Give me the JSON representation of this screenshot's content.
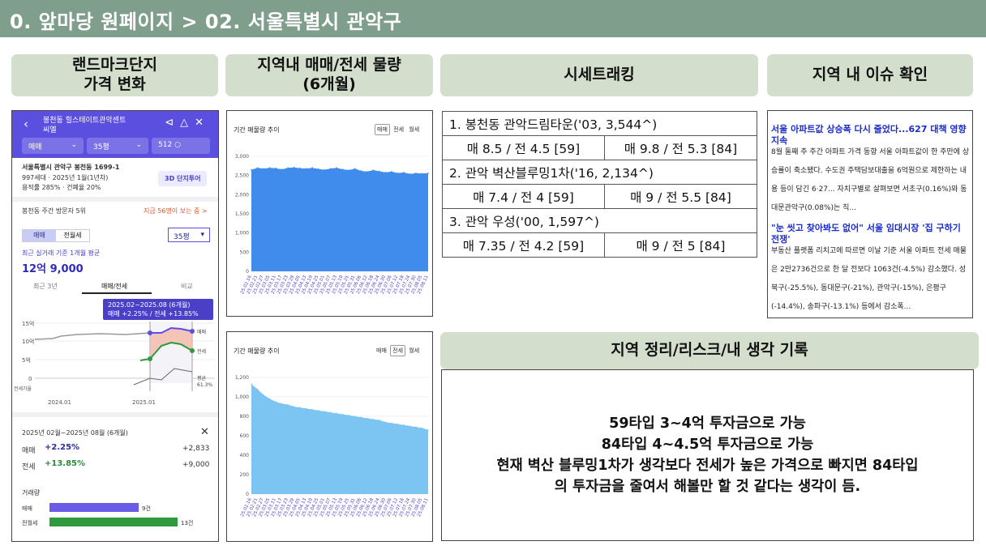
{
  "page": {
    "title": "0. 앞마당 원페이지 > 02. 서울특별시 관악구"
  },
  "headers": {
    "landmark": "랜드마크단지\n가격 변화",
    "volume": "지역내 매매/전세 물량\n(6개월)",
    "tracking": "시세트래킹",
    "issues": "지역 내 이슈 확인",
    "memo": "지역 정리/리스크/내 생각 기록"
  },
  "phone": {
    "title_line1": "봉천동 힐스테이트관악센트",
    "title_line2": "씨엘",
    "deal_type": "매매",
    "size": "35평",
    "count": "512",
    "address": "서울특별시 관악구 봉천동 1699-1",
    "households": "997세대 · 2025년 1월(1년차)",
    "ratio": "용적률 285% · 건폐율 20%",
    "tour_button": "3D 단지투어",
    "visitor_rank": "봉천동 주간 방문자 5위",
    "viewers": "지금 56명이 보는 중 >",
    "seg_sale": "매매",
    "seg_rent": "전월세",
    "size_dropdown": "35평",
    "avg_label": "최근 실거래 기준 1개월 평균",
    "avg_price": "12억 9,000",
    "tab_3y": "최근 3년",
    "tab_sale_rent": "매매/전세",
    "tab_compare": "비교",
    "tooltip_line1": "2025.02~2025.08 (6개월)",
    "tooltip_line2": "매매 +2.25% / 전세 +13.85%",
    "y_15": "15억",
    "y_10": "10억",
    "y_5": "5억",
    "y_0": "0",
    "y_vol": "전세가율",
    "lbl_sale": "매매",
    "lbl_rent": "전세",
    "lbl_avg": "평균",
    "lbl_avg_val": "61.3%",
    "x_2024": "2024.01",
    "x_2025": "2025.01",
    "period": "2025년 02월~2025년 08월 (6개월)",
    "close": "✕",
    "sale_label": "매매",
    "sale_pct": "+2.25%",
    "sale_amt": "+2,833",
    "rent_label": "전세",
    "rent_pct": "+13.85%",
    "rent_amt": "+9,000",
    "trade_title": "거래량",
    "trade_sale": "매매",
    "trade_sale_n": "9건",
    "trade_rent": "전월세",
    "trade_rent_n": "13건",
    "colors": {
      "brand": "#5b4fe0",
      "sale": "#5b4fe0",
      "rent": "#2e9a3c"
    }
  },
  "chart_data": [
    {
      "type": "area",
      "title": "기간 매물량 추이",
      "legend": [
        "매매",
        "전세",
        "월세"
      ],
      "selected": "매매",
      "ylim": [
        0,
        3000
      ],
      "yticks": [
        "0",
        "500",
        "1,000",
        "1,500",
        "2,000",
        "2,500",
        "3,000"
      ],
      "x": [
        "25.02.16",
        "25.02.21",
        "25.02.27",
        "25.03.05",
        "25.03.11",
        "25.03.17",
        "25.03.23",
        "25.03.29",
        "25.04.05",
        "25.04.13",
        "25.04.19",
        "25.04.25",
        "25.05.01",
        "25.05.07",
        "25.05.13",
        "25.05.19",
        "25.05.25",
        "25.05.31",
        "25.06.06",
        "25.06.12",
        "25.06.18",
        "25.06.24",
        "25.06.30",
        "25.07.06",
        "25.07.12",
        "25.07.18",
        "25.07.24",
        "25.07.30",
        "25.08.05",
        "25.08.11"
      ],
      "series": [
        {
          "name": "매매",
          "values": [
            2650,
            2700,
            2680,
            2700,
            2690,
            2660,
            2700,
            2710,
            2690,
            2680,
            2700,
            2670,
            2650,
            2680,
            2700,
            2660,
            2640,
            2680,
            2620,
            2600,
            2640,
            2610,
            2580,
            2600,
            2560,
            2580,
            2540,
            2560,
            2550,
            2560
          ]
        }
      ]
    },
    {
      "type": "area",
      "title": "기간 매물량 추이",
      "legend": [
        "매매",
        "전세",
        "월세"
      ],
      "selected": "전세",
      "ylim": [
        0,
        1200
      ],
      "yticks": [
        "0",
        "200",
        "400",
        "600",
        "800",
        "1,000",
        "1,200"
      ],
      "x": [
        "25.02.16",
        "25.02.21",
        "25.02.27",
        "25.03.05",
        "25.03.11",
        "25.03.17",
        "25.03.23",
        "25.03.29",
        "25.04.05",
        "25.04.13",
        "25.04.19",
        "25.04.25",
        "25.05.01",
        "25.05.07",
        "25.05.13",
        "25.05.19",
        "25.05.25",
        "25.05.31",
        "25.06.06",
        "25.06.12",
        "25.06.18",
        "25.06.24",
        "25.06.30",
        "25.07.06",
        "25.07.12",
        "25.07.18",
        "25.07.24",
        "25.07.30",
        "25.08.05",
        "25.08.11"
      ],
      "series": [
        {
          "name": "전세",
          "values": [
            1130,
            1080,
            1020,
            980,
            950,
            930,
            920,
            900,
            890,
            880,
            870,
            860,
            850,
            840,
            830,
            820,
            810,
            800,
            790,
            780,
            770,
            760,
            740,
            730,
            720,
            710,
            700,
            690,
            680,
            660
          ]
        }
      ]
    }
  ],
  "tracking": {
    "rows": [
      {
        "title": "1. 봉천동 관악드림타운('03, 3,544^)",
        "left": "매 8.5 / 전 4.5 [59]",
        "right": "매 9.8 / 전 5.3 [84]"
      },
      {
        "title": "2. 관악 벽산블루밍1차('16, 2,134^)",
        "left": "매 7.4 / 전 4 [59]",
        "right": "매 9 / 전 5.5 [84]"
      },
      {
        "title": "3. 관악 우성('00, 1,597^)",
        "left": "매 7.35 / 전 4.2 [59]",
        "right": "매 9 / 전 5 [84]"
      }
    ]
  },
  "news": {
    "h1": "서울 아파트값 상승폭 다시 줄었다...627 대책 영향 지속",
    "b1": "8월 둘째 주 주간 아파트 가격 동향 서울 아파트값이 한 주만에 상승률이 축소됐다. 수도권 주택담보대출을 6억원으로 제한하는 내용 등이 담긴 6·27... 자치구별로 살펴보면 서초구(0.16%)와 동대문관악구(0.08%)는 직...",
    "h2": "\"눈 씻고 찾아봐도 없어\" 서울 임대시장 '집 구하기 전쟁'",
    "b2": "부동산 플랫폼 리치고에 따르면 이날 기준 서울 아파트 전세 매물은 2만2736건으로 한 달 전보다 1063건(-4.5%) 감소했다. 성북구(-25.5%), 동대문구(-21%), 관악구(-15%), 은평구(-14.4%), 송파구(-13.1%) 등에서 감소폭..."
  },
  "memo": {
    "line1": "59타입 3~4억 투자금으로 가능",
    "line2": "84타입 4~4.5억 투자금으로 가능",
    "line3": "현재 벽산 블루밍1차가 생각보다 전세가 높은 가격으로 빠지면 84타입",
    "line4": "의 투자금을 줄여서 해볼만 할 것 같다는 생각이 듬."
  }
}
